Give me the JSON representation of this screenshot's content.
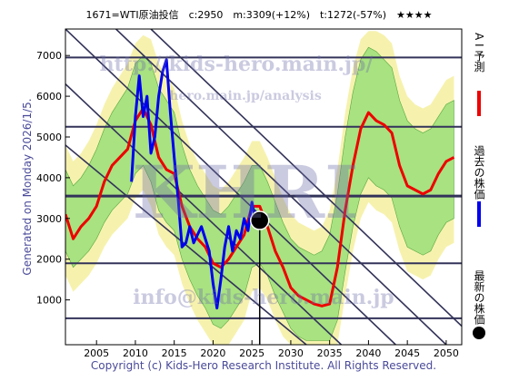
{
  "chart_data": {
    "type": "line",
    "title": "1671=WTI原油投信　c:2950　m:3309(+12%)　t:1272(-57%)　★★★★",
    "side_label": "Generated on Monday 2026/1/5.",
    "copyright": "Copyright (c) Kids-Hero Research Institute. All Rights Reserved.",
    "watermarks": [
      "http://kids-hero.main.jp/",
      "hero.main.jp/analysis",
      "KHRI",
      "info@kids-hero.main.jp"
    ],
    "xlim": [
      2001,
      2052
    ],
    "ylim": [
      -100,
      7650
    ],
    "xticks": [
      2005,
      2010,
      2015,
      2020,
      2025,
      2030,
      2035,
      2040,
      2045,
      2050
    ],
    "yticks": [
      1000,
      2000,
      3000,
      4000,
      5000,
      6000,
      7000
    ],
    "x": [
      2001,
      2002,
      2003,
      2004,
      2005,
      2006,
      2007,
      2008,
      2009,
      2010,
      2011,
      2012,
      2013,
      2014,
      2015,
      2016,
      2017,
      2018,
      2019,
      2020,
      2021,
      2022,
      2023,
      2024,
      2025,
      2026,
      2027,
      2028,
      2029,
      2030,
      2031,
      2032,
      2033,
      2034,
      2035,
      2036,
      2037,
      2038,
      2039,
      2040,
      2041,
      2042,
      2043,
      2044,
      2045,
      2046,
      2047,
      2048,
      2049,
      2050,
      2051
    ],
    "bands": [
      {
        "color": "#f4f0a0",
        "upper": [
          4800,
          4400,
          4600,
          4900,
          5300,
          5800,
          6200,
          6500,
          6800,
          7300,
          7500,
          7400,
          6800,
          6500,
          6200,
          5400,
          4800,
          4400,
          4100,
          3800,
          3700,
          3900,
          4200,
          4500,
          4900,
          4900,
          4500,
          4000,
          3500,
          3100,
          2900,
          2800,
          2700,
          2800,
          3200,
          4200,
          5600,
          6700,
          7400,
          7600,
          7600,
          7500,
          7300,
          6500,
          6000,
          5800,
          5700,
          5800,
          6100,
          6400,
          6500
        ],
        "lower": [
          1600,
          1200,
          1400,
          1600,
          1900,
          2300,
          2600,
          2800,
          3000,
          3500,
          3700,
          3300,
          2600,
          2300,
          2100,
          1400,
          900,
          500,
          200,
          -100,
          -100,
          -100,
          200,
          500,
          1200,
          1300,
          1000,
          500,
          100,
          -100,
          -100,
          -100,
          -100,
          -100,
          -100,
          -100,
          1100,
          2200,
          3000,
          3400,
          3200,
          3100,
          2900,
          2200,
          1700,
          1600,
          1500,
          1600,
          2000,
          2300,
          2400
        ]
      },
      {
        "color": "#9be07a",
        "upper": [
          4200,
          3800,
          4000,
          4300,
          4700,
          5200,
          5600,
          5900,
          6200,
          6800,
          7000,
          6800,
          6200,
          5900,
          5600,
          4800,
          4200,
          3800,
          3500,
          3200,
          3100,
          3300,
          3600,
          3900,
          4300,
          4300,
          3900,
          3400,
          2900,
          2500,
          2300,
          2200,
          2100,
          2200,
          2600,
          3600,
          5000,
          6100,
          6900,
          7200,
          7100,
          6900,
          6700,
          5900,
          5400,
          5200,
          5100,
          5200,
          5500,
          5800,
          5900
        ],
        "lower": [
          2200,
          1800,
          2000,
          2200,
          2500,
          2900,
          3200,
          3400,
          3600,
          4100,
          4300,
          3900,
          3200,
          2900,
          2700,
          2000,
          1500,
          1100,
          800,
          400,
          300,
          500,
          800,
          1100,
          1800,
          1900,
          1600,
          1100,
          700,
          300,
          100,
          0,
          0,
          0,
          0,
          500,
          1700,
          2800,
          3600,
          4000,
          3800,
          3700,
          3500,
          2800,
          2300,
          2200,
          2100,
          2200,
          2600,
          2900,
          3000
        ]
      }
    ],
    "levels": [
      6950,
      5250,
      3550,
      1900,
      550
    ],
    "trend_lines": [
      {
        "x": [
          2001,
          2043.5
        ],
        "y": [
          7650,
          -100
        ]
      },
      {
        "x": [
          2007.5,
          2050
        ],
        "y": [
          7650,
          -100
        ]
      },
      {
        "x": [
          2012,
          2054.5
        ],
        "y": [
          7650,
          -100
        ]
      },
      {
        "x": [
          2001,
          2036.5
        ],
        "y": [
          6300,
          -100
        ]
      },
      {
        "x": [
          2001,
          2032
        ],
        "y": [
          4800,
          -100
        ]
      }
    ],
    "series": [
      {
        "name": "A I 予測",
        "color": "#ee0000",
        "values": [
          3100,
          2500,
          2800,
          3000,
          3300,
          3900,
          4300,
          4500,
          4700,
          5400,
          5700,
          5300,
          4500,
          4200,
          4100,
          3300,
          2800,
          2500,
          2300,
          1900,
          1800,
          2000,
          2300,
          2600,
          3300,
          3300,
          2800,
          2200,
          1800,
          1300,
          1100,
          1000,
          900,
          850,
          900,
          1800,
          3200,
          4300,
          5200,
          5600,
          5400,
          5300,
          5100,
          4300,
          3800,
          3700,
          3600,
          3700,
          4100,
          4400,
          4500
        ]
      },
      {
        "name": "過去の株価",
        "color": "#0000ee",
        "x": [
          2009.5,
          2010,
          2010.5,
          2011,
          2011.5,
          2012,
          2012.5,
          2013,
          2013.5,
          2014,
          2014.5,
          2015,
          2015.5,
          2016,
          2016.5,
          2017,
          2017.5,
          2018,
          2018.5,
          2019,
          2019.5,
          2020,
          2020.5,
          2021,
          2021.5,
          2022,
          2022.5,
          2023,
          2023.5,
          2024,
          2024.5,
          2025,
          2025.5,
          2026
        ],
        "values": [
          3900,
          5500,
          6500,
          5500,
          6000,
          4600,
          5000,
          6000,
          6600,
          6900,
          5600,
          4500,
          3500,
          2300,
          2400,
          2800,
          2400,
          2600,
          2800,
          2500,
          2200,
          1400,
          800,
          1500,
          2300,
          2800,
          2200,
          2700,
          2500,
          3000,
          2700,
          3400,
          2900,
          2950
        ]
      }
    ],
    "latest": {
      "name": "最新の株価",
      "x": 2026,
      "value": 2950,
      "color": "#000000"
    }
  }
}
